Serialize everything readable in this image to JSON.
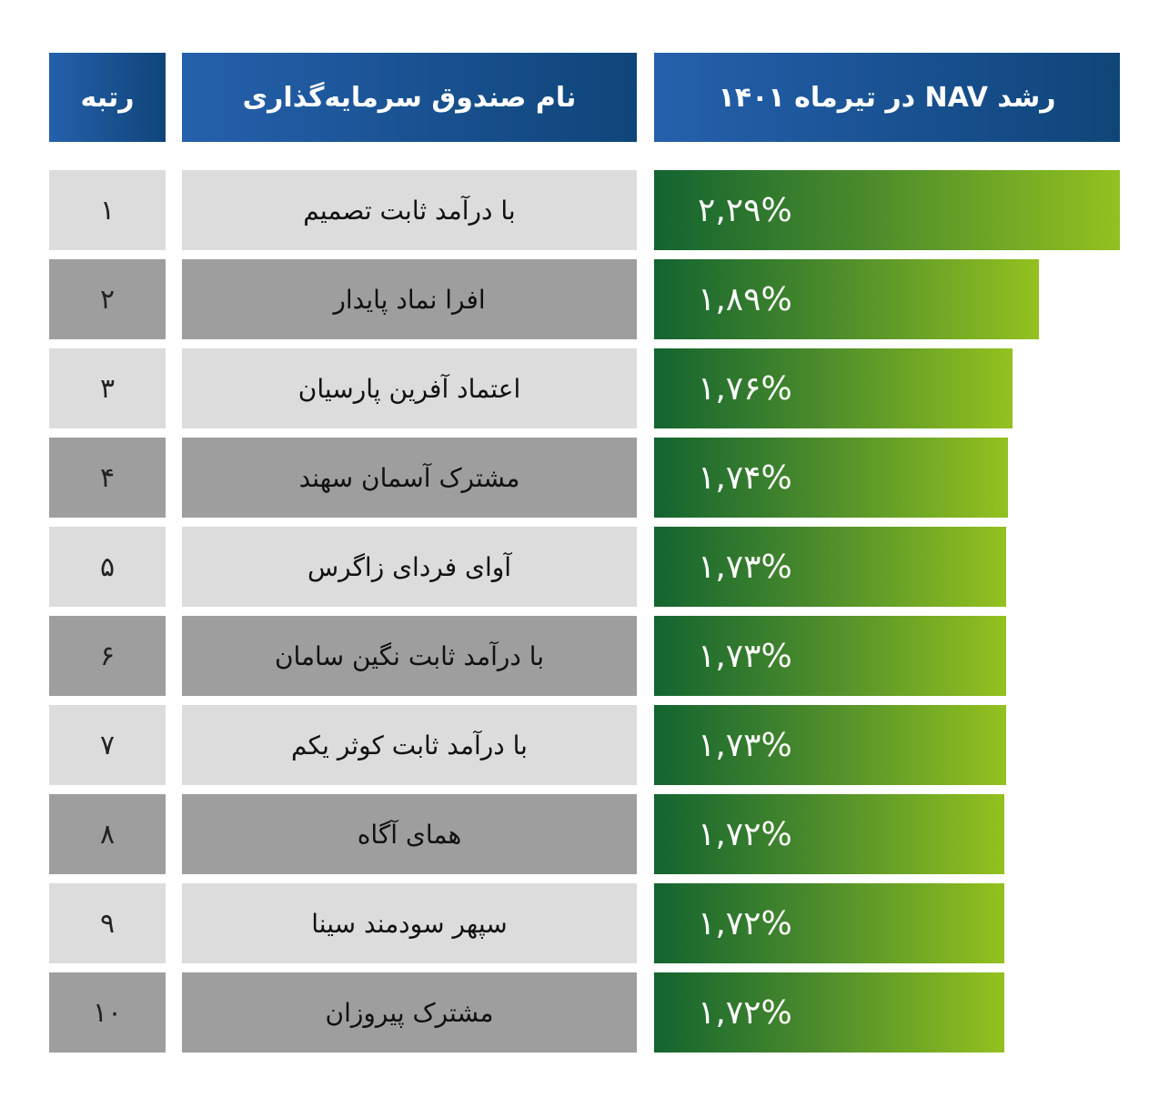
{
  "header": {
    "rank": "رتبه",
    "name": "نام صندوق سرمایه‌گذاری",
    "growth": "رشد NAV در تیرماه ۱۴۰۱"
  },
  "colors": {
    "header_start": "#2560ac",
    "header_end": "#0f4579",
    "bar_start": "#136430",
    "bar_end": "#93c11f",
    "row_light": "#dcdcdc",
    "row_dark": "#9e9e9e"
  },
  "chart_data": {
    "type": "bar",
    "title": "رشد NAV در تیرماه ۱۴۰۱",
    "orientation": "horizontal",
    "unit": "%",
    "rows": [
      {
        "rank": "۱",
        "name": "با درآمد ثابت تصمیم",
        "value": 2.29,
        "label": "۲,۲۹%"
      },
      {
        "rank": "۲",
        "name": "افرا نماد پایدار",
        "value": 1.89,
        "label": "۱,۸۹%"
      },
      {
        "rank": "۳",
        "name": "اعتماد آفرین پارسیان",
        "value": 1.76,
        "label": "۱,۷۶%"
      },
      {
        "rank": "۴",
        "name": "مشترک آسمان سهند",
        "value": 1.74,
        "label": "۱,۷۴%"
      },
      {
        "rank": "۵",
        "name": "آوای فردای زاگرس",
        "value": 1.73,
        "label": "۱,۷۳%"
      },
      {
        "rank": "۶",
        "name": "با درآمد ثابت نگین سامان",
        "value": 1.73,
        "label": "۱,۷۳%"
      },
      {
        "rank": "۷",
        "name": "با درآمد ثابت کوثر یکم",
        "value": 1.73,
        "label": "۱,۷۳%"
      },
      {
        "rank": "۸",
        "name": "همای آگاه",
        "value": 1.72,
        "label": "۱,۷۲%"
      },
      {
        "rank": "۹",
        "name": "سپهر سودمند سینا",
        "value": 1.72,
        "label": "۱,۷۲%"
      },
      {
        "rank": "۱۰",
        "name": "مشترک پیروزان",
        "value": 1.72,
        "label": "۱,۷۲%"
      }
    ],
    "xlim": [
      0,
      2.29
    ]
  }
}
